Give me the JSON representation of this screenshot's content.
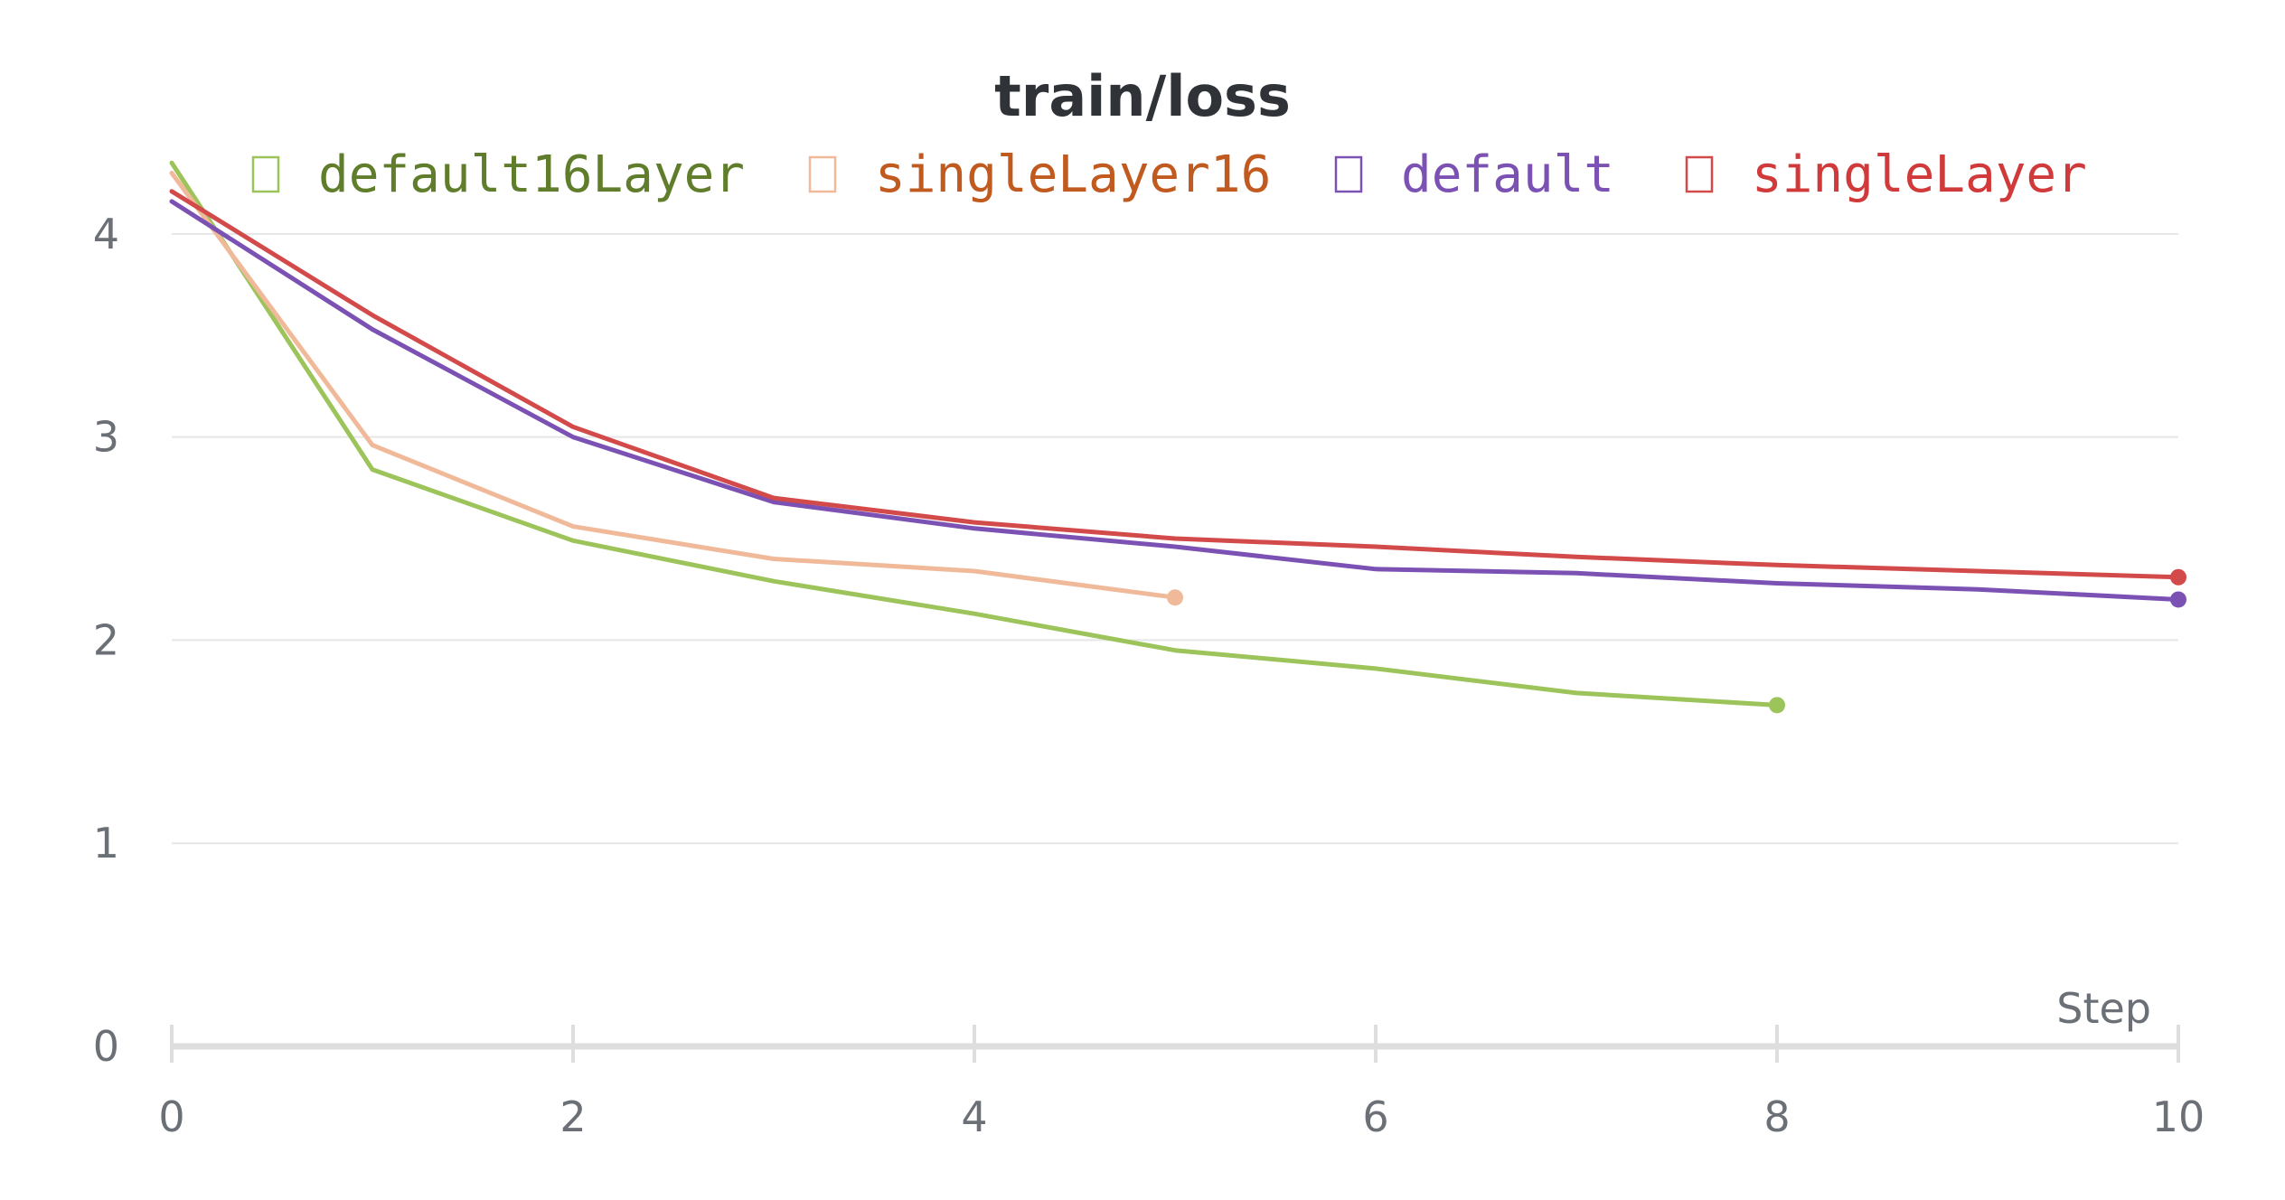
{
  "chart_data": {
    "type": "line",
    "title": "train/loss",
    "xlabel": "Step",
    "ylabel": "",
    "xlim": [
      0,
      10
    ],
    "ylim": [
      0,
      4.6
    ],
    "x_ticks": [
      "0",
      "2",
      "4",
      "6",
      "8",
      "10"
    ],
    "y_ticks": [
      "0",
      "1",
      "2",
      "3",
      "4"
    ],
    "grid": true,
    "legend_position": "top",
    "series": [
      {
        "name": "default16Layer",
        "color": "#9cc45a",
        "legend_text_color": "#5f7d2a",
        "x": [
          0,
          1,
          2,
          3,
          4,
          5,
          6,
          7,
          8
        ],
        "y": [
          4.35,
          2.84,
          2.49,
          2.29,
          2.13,
          1.95,
          1.86,
          1.74,
          1.68
        ]
      },
      {
        "name": "singleLayer16",
        "color": "#f0b999",
        "legend_text_color": "#c05a1f",
        "x": [
          0,
          1,
          2,
          3,
          4,
          5
        ],
        "y": [
          4.3,
          2.96,
          2.56,
          2.4,
          2.34,
          2.21
        ]
      },
      {
        "name": "default",
        "color": "#7b52b3",
        "legend_text_color": "#7b52b3",
        "x": [
          0,
          1,
          2,
          3,
          4,
          5,
          6,
          7,
          8,
          9,
          10
        ],
        "y": [
          4.16,
          3.53,
          3.0,
          2.68,
          2.55,
          2.46,
          2.35,
          2.33,
          2.28,
          2.25,
          2.2
        ]
      },
      {
        "name": "singleLayer",
        "color": "#d34a4a",
        "legend_text_color": "#d03a3a",
        "x": [
          0,
          1,
          2,
          3,
          4,
          5,
          6,
          7,
          8,
          9,
          10
        ],
        "y": [
          4.21,
          3.6,
          3.05,
          2.7,
          2.58,
          2.5,
          2.46,
          2.41,
          2.37,
          2.34,
          2.31
        ]
      }
    ]
  }
}
